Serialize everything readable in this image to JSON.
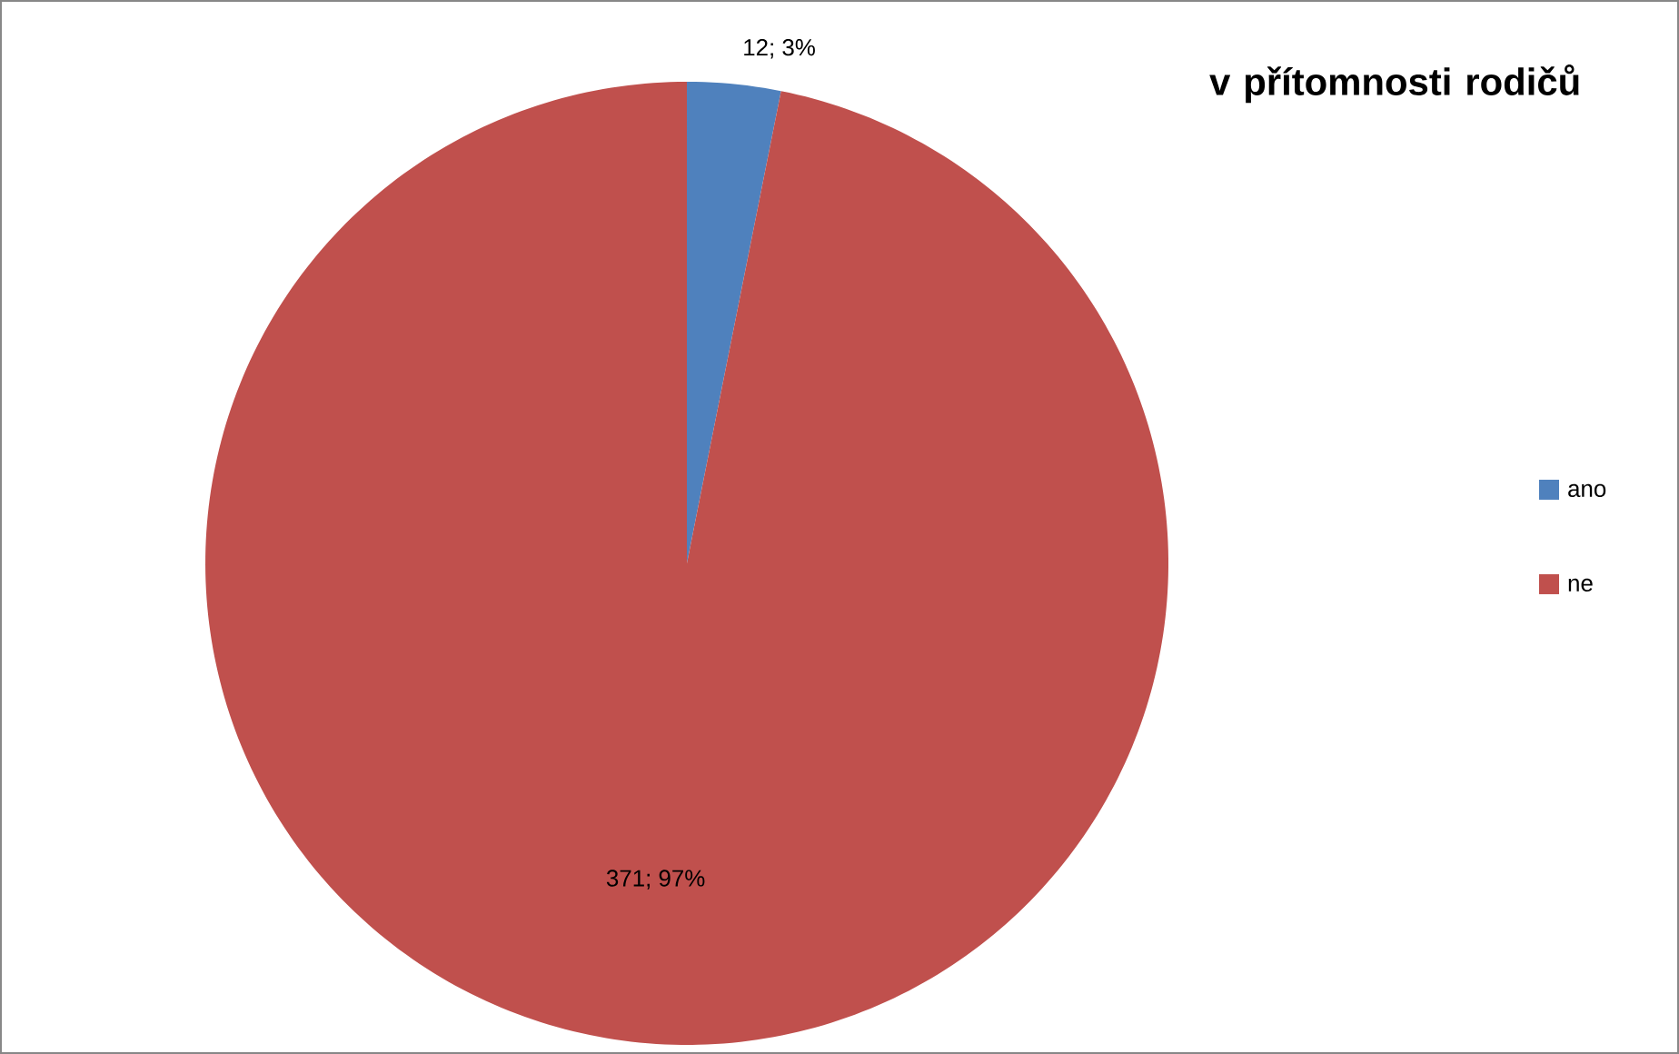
{
  "chart_data": {
    "type": "pie",
    "title": "v přítomnosti rodičů",
    "categories": [
      "ano",
      "ne"
    ],
    "values": [
      12,
      371
    ],
    "colors": [
      "#4f81bd",
      "#c0504d"
    ],
    "value_labels": [
      "12; 3%",
      "371; 97%"
    ],
    "legend": "right"
  }
}
